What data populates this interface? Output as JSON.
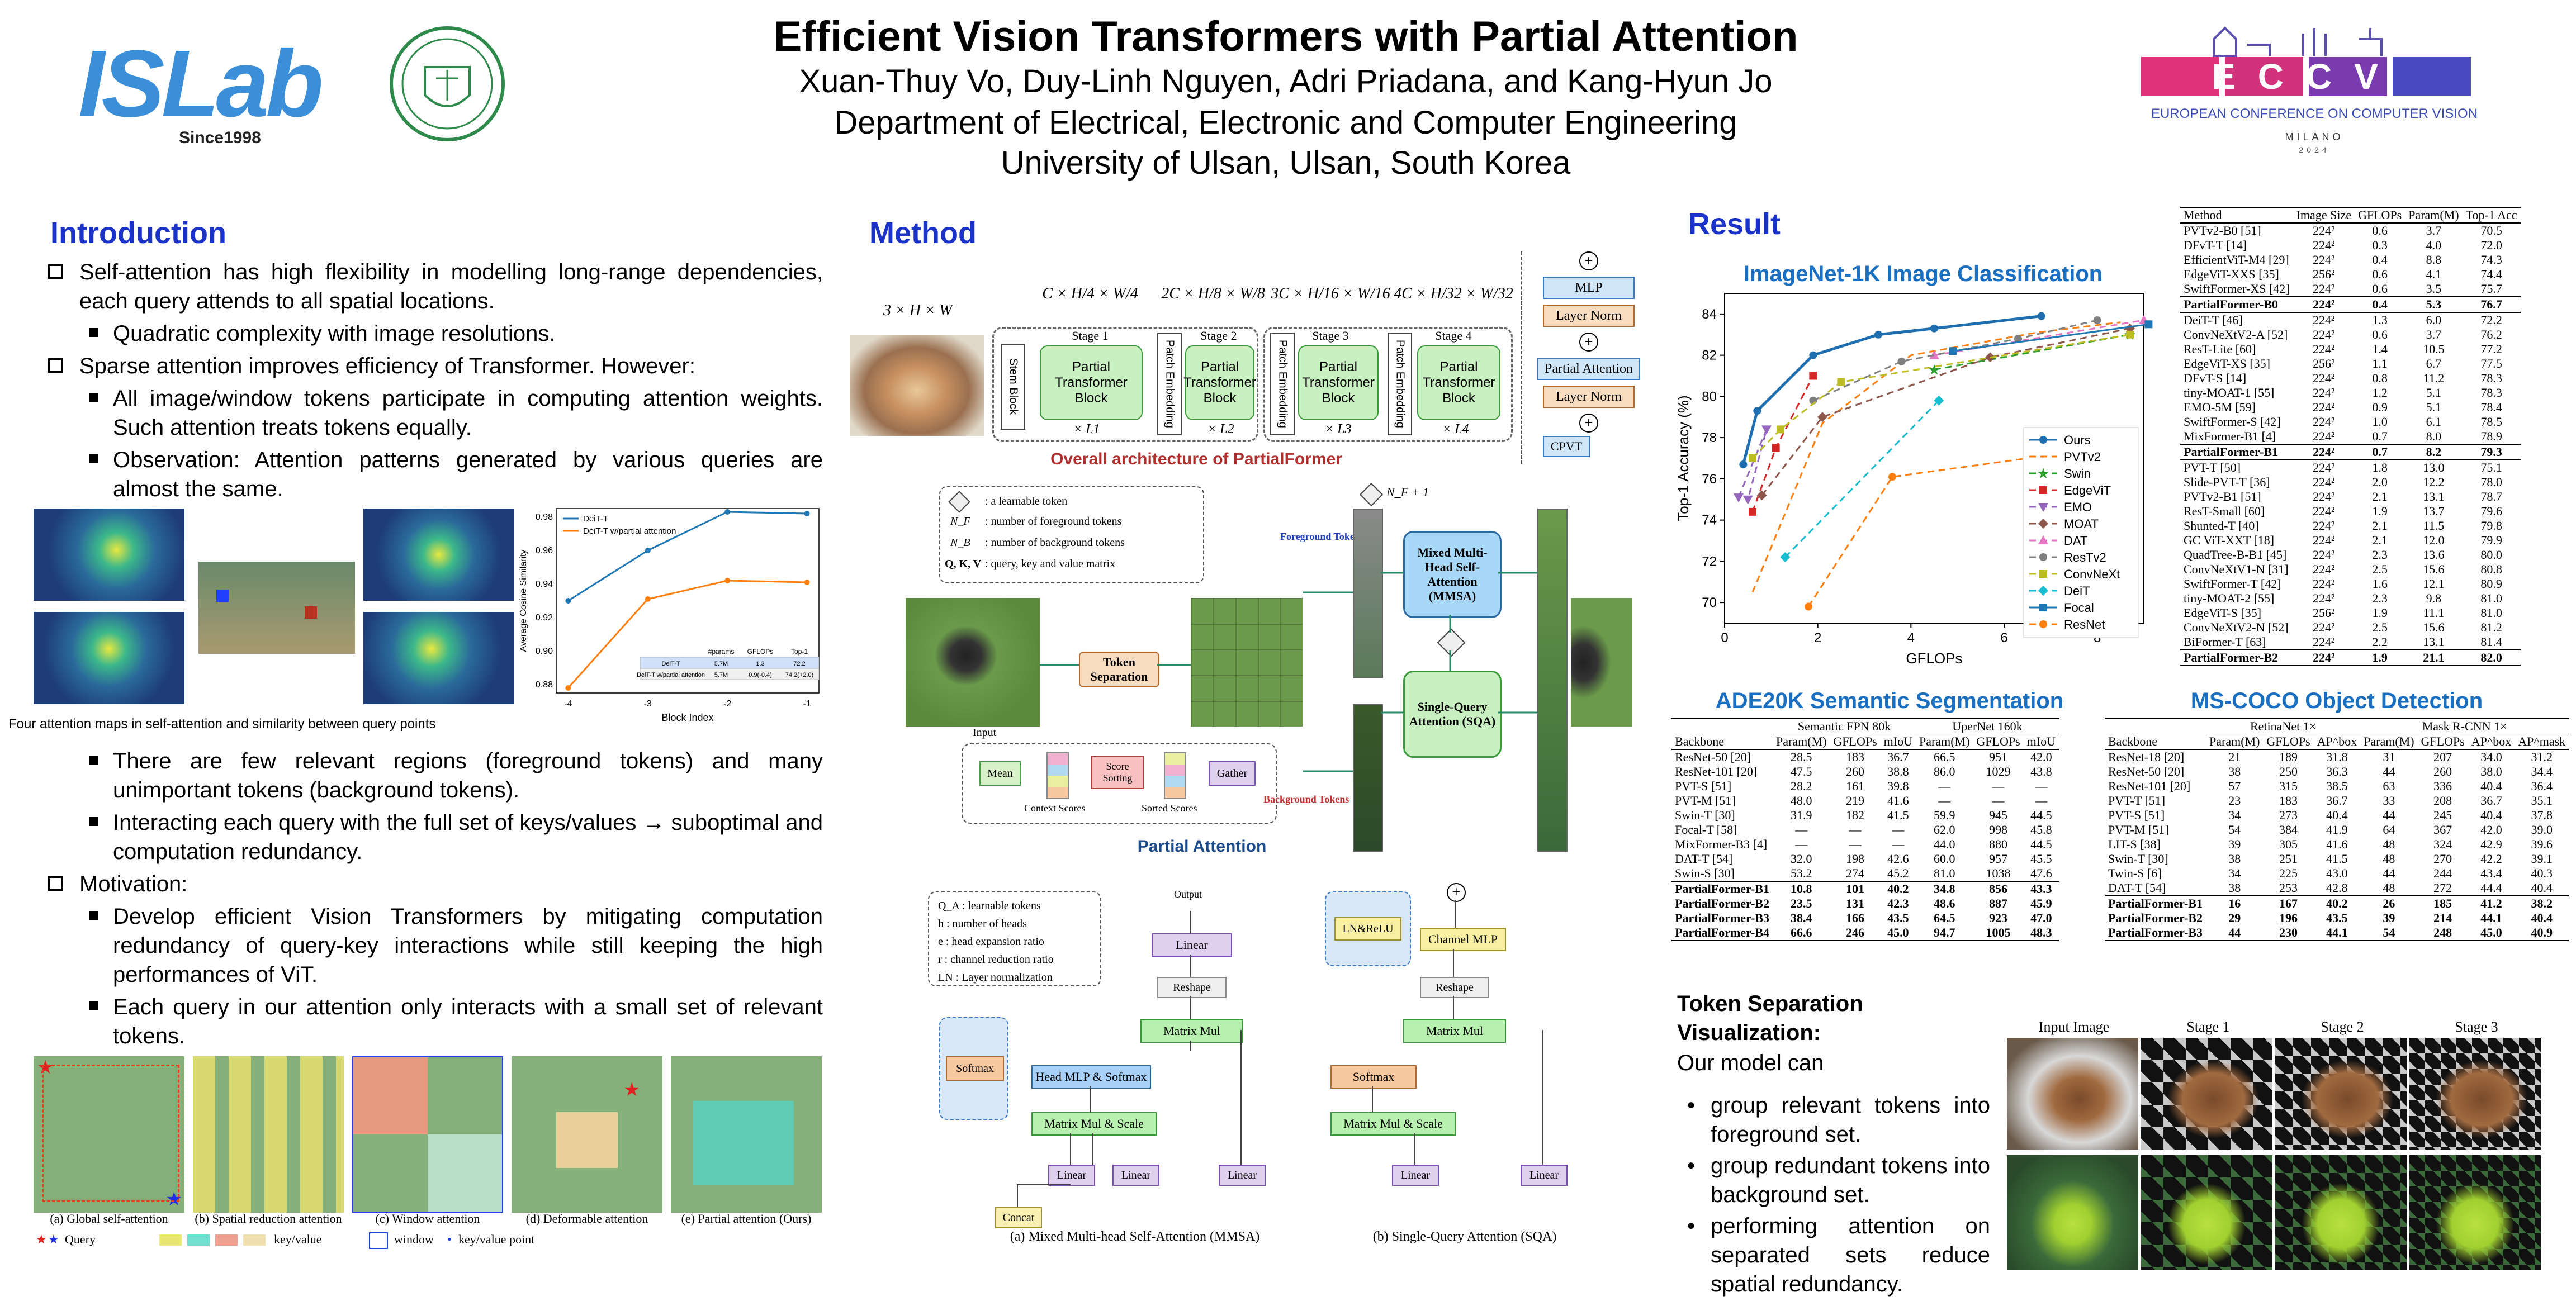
{
  "header": {
    "title": "Efficient Vision Transformers with Partial Attention",
    "authors": "Xuan-Thuy Vo, Duy-Linh Nguyen, Adri Priadana, and Kang-Hyun Jo",
    "department": "Department of Electrical, Electronic and Computer Engineering",
    "university": "University of Ulsan, Ulsan, South Korea",
    "lab_logo": "ISLab",
    "lab_since": "Since1998",
    "eccv_logo": "ECCV",
    "eccv_sub": "EUROPEAN CONFERENCE ON COMPUTER VISION",
    "eccv_city": "MILANO",
    "eccv_year": "2024"
  },
  "introduction": {
    "heading": "Introduction",
    "p1": "Self-attention has high flexibility in modelling long-range dependencies, each query attends to all spatial locations.",
    "p1_b1": "Quadratic complexity with image resolutions.",
    "p2": "Sparse attention improves efficiency of Transformer. However:",
    "p2_b1": "All image/window tokens participate in computing attention weights. Such attention treats tokens equally.",
    "p2_b2": "Observation: Attention patterns generated by various queries are almost the same.",
    "fig_caption": "Four attention maps in self-attention and similarity between query points",
    "p2_b3": "There are few relevant regions (foreground tokens) and many unimportant tokens (background tokens).",
    "p2_b4": "Interacting each query with the full set of keys/values → suboptimal and computation redundancy.",
    "p3": "Motivation:",
    "p3_b1": "Develop efficient Vision Transformers by mitigating computation redundancy of query-key interactions while still keeping the high performances of ViT.",
    "p3_b2": "Each query in our attention only interacts with a small set of relevant tokens.",
    "panel_captions": [
      "(a) Global self-attention",
      "(b) Spatial reduction attention",
      "(c) Window attention",
      "(d) Deformable attention",
      "(e) Partial attention (Ours)"
    ],
    "legend_query": "Query",
    "legend_kv": "key/value",
    "legend_window": "window",
    "legend_kvpoint": "key/value point"
  },
  "sim_chart": {
    "ylabel": "Average Cosine Similarity",
    "xlabel": "Block Index",
    "legend": [
      "DeiT-T",
      "DeiT-T w/partial attention"
    ],
    "x_ticks": [
      "-4",
      "-3",
      "-2",
      "-1"
    ],
    "y_ticks": [
      "0.88",
      "0.90",
      "0.92",
      "0.94",
      "0.96",
      "0.98"
    ],
    "colors": [
      "#1f77b4",
      "#ff7f0e"
    ],
    "inset_table": {
      "header": [
        "",
        "#params",
        "GFLOPs",
        "Top-1"
      ],
      "rows": [
        [
          "DeiT-T",
          "5.7M",
          "1.3",
          "72.2"
        ],
        [
          "DeiT-T w/partial attention",
          "5.7M",
          "0.9(-0.4)",
          "74.2(+2.0)"
        ]
      ]
    }
  },
  "method": {
    "heading": "Method",
    "input_label": "3 × H × W",
    "stem": "Stem Block",
    "patch_embed": "Patch Embedding",
    "stages": [
      {
        "name": "Stage 1",
        "dim": "C × H/4 × W/4",
        "rep": "× L1"
      },
      {
        "name": "Stage 2",
        "dim": "2C × H/8 × W/8",
        "rep": "× L2"
      },
      {
        "name": "Stage 3",
        "dim": "3C × H/16 × W/16",
        "rep": "× L3"
      },
      {
        "name": "Stage 4",
        "dim": "4C × H/32 × W/32",
        "rep": "× L4"
      }
    ],
    "block_label": "Partial Transformer Block",
    "block_parts": [
      "MLP",
      "Layer Norm",
      "Partial Attention",
      "Layer Norm",
      "CPVT"
    ],
    "overall_caption": "Overall architecture of PartialFormer",
    "legend_items": [
      ": a learnable token",
      ": number of foreground tokens",
      ": number of background tokens",
      ": query, key and value matrix"
    ],
    "legend_symbols": [
      "",
      "N_F",
      "N_B",
      "Q, K, V"
    ],
    "token_sep": "Token Separation",
    "input": "Input",
    "ts_steps": [
      "Mean",
      "Score Sorting",
      "Gather"
    ],
    "context_scores": "Context Scores",
    "sorted_scores": "Sorted Scores",
    "fg_tokens": "Foreground Tokens",
    "bg_tokens": "Background Tokens",
    "mmsa": "Mixed Multi-Head Self-Attention (MMSA)",
    "sqa": "Single-Query Attention (SQA)",
    "nf1": "N_F + 1",
    "partial_caption": "Partial Attention",
    "notes": [
      "Q_A : learnable tokens",
      "h : number of heads",
      "e : head expansion ratio",
      "r : channel reduction ratio",
      "LN : Layer normalization"
    ],
    "mmsa_boxes": [
      "Linear",
      "Reshape",
      "Matrix Mul",
      "Head MLP & Softmax",
      "Matrix Mul & Scale",
      "Linear",
      "Linear",
      "Linear",
      "Concat"
    ],
    "sqa_boxes": [
      "LN&ReLU",
      "Channel MLP",
      "Reshape",
      "Matrix Mul",
      "Softmax",
      "Matrix Mul & Scale",
      "Linear",
      "Linear"
    ],
    "softmax": "Softmax",
    "mmsa_caption": "(a) Mixed Multi-head Self-Attention (MMSA)",
    "sqa_caption": "(b) Single-Query Attention (SQA)",
    "output": "Output"
  },
  "result": {
    "heading": "Result",
    "imagenet_title": "ImageNet-1K Image Classification",
    "ade_title": "ADE20K Semantic Segmentation",
    "coco_title": "MS-COCO Object Detection",
    "token_vis_title": "Token Separation Visualization:",
    "token_vis_text": "Our model can",
    "token_vis_items": [
      "group relevant tokens into foreground set.",
      "group redundant tokens into background set.",
      "performing attention on separated sets reduce spatial redundancy."
    ],
    "vis_headers": [
      "Input Image",
      "Stage 1",
      "Stage 2",
      "Stage 3"
    ]
  },
  "chart_data": {
    "type": "line",
    "title": "ImageNet-1K Image Classification",
    "xlabel": "GFLOPs",
    "ylabel": "Top-1 Accuracy (%)",
    "xlim": [
      0,
      9
    ],
    "ylim": [
      69,
      85
    ],
    "x_ticks": [
      0,
      2,
      4,
      6,
      8
    ],
    "y_ticks": [
      70,
      72,
      74,
      76,
      78,
      80,
      82,
      84
    ],
    "legend_position": "right",
    "series": [
      {
        "name": "Ours",
        "color": "#1f6fb0",
        "dash": "",
        "marker": "circle",
        "x": [
          0.4,
          0.7,
          1.9,
          3.3,
          4.5,
          6.8
        ],
        "y": [
          76.7,
          79.3,
          82.0,
          83.0,
          83.3,
          83.9
        ]
      },
      {
        "name": "PVTv2",
        "color": "#ff7f0e",
        "dash": "12,8",
        "marker": "none",
        "x": [
          0.6,
          2.1,
          4.0,
          6.7,
          8.5
        ],
        "y": [
          70.5,
          78.7,
          82.0,
          83.1,
          83.6
        ]
      },
      {
        "name": "Swin",
        "color": "#2ca02c",
        "dash": "12,8",
        "marker": "star",
        "x": [
          4.5,
          8.7
        ],
        "y": [
          81.3,
          83.0
        ]
      },
      {
        "name": "EdgeViT",
        "color": "#d62728",
        "dash": "12,8",
        "marker": "square",
        "x": [
          0.6,
          1.1,
          1.9
        ],
        "y": [
          74.4,
          77.5,
          81.0
        ]
      },
      {
        "name": "EMO",
        "color": "#9467bd",
        "dash": "12,8",
        "marker": "triangle-down",
        "x": [
          0.3,
          0.9,
          0.5
        ],
        "y": [
          75.1,
          78.4,
          75.0
        ]
      },
      {
        "name": "MOAT",
        "color": "#8c564b",
        "dash": "12,8",
        "marker": "diamond",
        "x": [
          0.8,
          2.1,
          5.7,
          8.7
        ],
        "y": [
          75.2,
          79.0,
          81.9,
          83.3
        ]
      },
      {
        "name": "DAT",
        "color": "#e377c2",
        "dash": "12,8",
        "marker": "triangle-up",
        "x": [
          4.5,
          9.0
        ],
        "y": [
          82.0,
          83.7
        ]
      },
      {
        "name": "ResTv2",
        "color": "#7f7f7f",
        "dash": "12,8",
        "marker": "circle",
        "x": [
          1.9,
          3.8,
          6.3,
          8.0
        ],
        "y": [
          79.8,
          81.7,
          82.8,
          83.7
        ]
      },
      {
        "name": "ConvNeXt",
        "color": "#bcbd22",
        "dash": "12,8",
        "marker": "square",
        "x": [
          0.6,
          1.2,
          2.5,
          8.7
        ],
        "y": [
          77.0,
          78.4,
          80.7,
          83.0
        ]
      },
      {
        "name": "DeiT",
        "color": "#17becf",
        "dash": "12,8",
        "marker": "diamond",
        "x": [
          1.3,
          4.6
        ],
        "y": [
          72.2,
          79.8
        ]
      },
      {
        "name": "Focal",
        "color": "#1f77b4",
        "dash": "",
        "marker": "square",
        "x": [
          4.9,
          9.1
        ],
        "y": [
          82.2,
          83.5
        ]
      },
      {
        "name": "ResNet",
        "color": "#ff7f0e",
        "dash": "12,8",
        "marker": "circle",
        "x": [
          1.8,
          3.6,
          7.8
        ],
        "y": [
          69.8,
          76.1,
          77.4
        ]
      }
    ]
  },
  "imagenet_table": {
    "header": [
      "Method",
      "Image Size",
      "GFLOPs",
      "Param(M)",
      "Top-1 Acc"
    ],
    "groups": [
      {
        "rows": [
          [
            "PVTv2-B0 [51]",
            "224²",
            "0.6",
            "3.7",
            "70.5"
          ],
          [
            "DFvT-T [14]",
            "224²",
            "0.3",
            "4.0",
            "72.0"
          ],
          [
            "EfficientViT-M4 [29]",
            "224²",
            "0.4",
            "8.8",
            "74.3"
          ],
          [
            "EdgeViT-XXS [35]",
            "256²",
            "0.6",
            "4.1",
            "74.4"
          ],
          [
            "SwiftFormer-XS [42]",
            "224²",
            "0.6",
            "3.5",
            "75.7"
          ]
        ],
        "ours": [
          "PartialFormer-B0",
          "224²",
          "0.4",
          "5.3",
          "76.7"
        ]
      },
      {
        "rows": [
          [
            "DeiT-T [46]",
            "224²",
            "1.3",
            "6.0",
            "72.2"
          ],
          [
            "ConvNeXtV2-A [52]",
            "224²",
            "0.6",
            "3.7",
            "76.2"
          ],
          [
            "ResT-Lite [60]",
            "224²",
            "1.4",
            "10.5",
            "77.2"
          ],
          [
            "EdgeViT-XS [35]",
            "256²",
            "1.1",
            "6.7",
            "77.5"
          ],
          [
            "DFvT-S [14]",
            "224²",
            "0.8",
            "11.2",
            "78.3"
          ],
          [
            "tiny-MOAT-1 [55]",
            "224²",
            "1.2",
            "5.1",
            "78.3"
          ],
          [
            "EMO-5M [59]",
            "224²",
            "0.9",
            "5.1",
            "78.4"
          ],
          [
            "SwiftFormer-S [42]",
            "224²",
            "1.0",
            "6.1",
            "78.5"
          ],
          [
            "MixFormer-B1 [4]",
            "224²",
            "0.7",
            "8.0",
            "78.9"
          ]
        ],
        "ours": [
          "PartialFormer-B1",
          "224²",
          "0.7",
          "8.2",
          "79.3"
        ]
      },
      {
        "rows": [
          [
            "PVT-T [50]",
            "224²",
            "1.8",
            "13.0",
            "75.1"
          ],
          [
            "Slide-PVT-T [36]",
            "224²",
            "2.0",
            "12.2",
            "78.0"
          ],
          [
            "PVTv2-B1 [51]",
            "224²",
            "2.1",
            "13.1",
            "78.7"
          ],
          [
            "ResT-Small [60]",
            "224²",
            "1.9",
            "13.7",
            "79.6"
          ],
          [
            "Shunted-T [40]",
            "224²",
            "2.1",
            "11.5",
            "79.8"
          ],
          [
            "GC ViT-XXT [18]",
            "224²",
            "2.1",
            "12.0",
            "79.9"
          ],
          [
            "QuadTree-B-B1 [45]",
            "224²",
            "2.3",
            "13.6",
            "80.0"
          ],
          [
            "ConvNeXtV1-N [31]",
            "224²",
            "2.5",
            "15.6",
            "80.8"
          ],
          [
            "SwiftFormer-T [42]",
            "224²",
            "1.6",
            "12.1",
            "80.9"
          ],
          [
            "tiny-MOAT-2 [55]",
            "224²",
            "2.3",
            "9.8",
            "81.0"
          ],
          [
            "EdgeViT-S [35]",
            "256²",
            "1.9",
            "11.1",
            "81.0"
          ],
          [
            "ConvNeXtV2-N [52]",
            "224²",
            "2.5",
            "15.6",
            "81.2"
          ],
          [
            "BiFormer-T [63]",
            "224²",
            "2.2",
            "13.1",
            "81.4"
          ]
        ],
        "ours": [
          "PartialFormer-B2",
          "224²",
          "1.9",
          "21.1",
          "82.0"
        ]
      }
    ]
  },
  "ade_table": {
    "group_headers": [
      "Semantic FPN 80k",
      "UperNet 160k"
    ],
    "header": [
      "Backbone",
      "Param(M)",
      "GFLOPs",
      "mIoU",
      "Param(M)",
      "GFLOPs",
      "mIoU"
    ],
    "rows": [
      [
        "ResNet-50 [20]",
        "28.5",
        "183",
        "36.7",
        "66.5",
        "951",
        "42.0"
      ],
      [
        "ResNet-101 [20]",
        "47.5",
        "260",
        "38.8",
        "86.0",
        "1029",
        "43.8"
      ],
      [
        "PVT-S [51]",
        "28.2",
        "161",
        "39.8",
        "—",
        "—",
        "—"
      ],
      [
        "PVT-M [51]",
        "48.0",
        "219",
        "41.6",
        "—",
        "—",
        "—"
      ],
      [
        "Swin-T [30]",
        "31.9",
        "182",
        "41.5",
        "59.9",
        "945",
        "44.5"
      ],
      [
        "Focal-T [58]",
        "—",
        "—",
        "—",
        "62.0",
        "998",
        "45.8"
      ],
      [
        "MixFormer-B3 [4]",
        "—",
        "—",
        "—",
        "44.0",
        "880",
        "44.5"
      ],
      [
        "DAT-T [54]",
        "32.0",
        "198",
        "42.6",
        "60.0",
        "957",
        "45.5"
      ],
      [
        "Swin-S [30]",
        "53.2",
        "274",
        "45.2",
        "81.0",
        "1038",
        "47.6"
      ]
    ],
    "ours": [
      [
        "PartialFormer-B1",
        "10.8",
        "101",
        "40.2",
        "34.8",
        "856",
        "43.3"
      ],
      [
        "PartialFormer-B2",
        "23.5",
        "131",
        "42.3",
        "48.6",
        "887",
        "45.9"
      ],
      [
        "PartialFormer-B3",
        "38.4",
        "166",
        "43.5",
        "64.5",
        "923",
        "47.0"
      ],
      [
        "PartialFormer-B4",
        "66.6",
        "246",
        "45.0",
        "94.7",
        "1005",
        "48.3"
      ]
    ]
  },
  "coco_table": {
    "group_headers": [
      "RetinaNet 1×",
      "Mask R-CNN 1×"
    ],
    "header": [
      "Backbone",
      "Param(M)",
      "GFLOPs",
      "AP^box",
      "Param(M)",
      "GFLOPs",
      "AP^box",
      "AP^mask"
    ],
    "rows": [
      [
        "ResNet-18 [20]",
        "21",
        "189",
        "31.8",
        "31",
        "207",
        "34.0",
        "31.2"
      ],
      [
        "ResNet-50 [20]",
        "38",
        "250",
        "36.3",
        "44",
        "260",
        "38.0",
        "34.4"
      ],
      [
        "ResNet-101 [20]",
        "57",
        "315",
        "38.5",
        "63",
        "336",
        "40.4",
        "36.4"
      ],
      [
        "PVT-T [51]",
        "23",
        "183",
        "36.7",
        "33",
        "208",
        "36.7",
        "35.1"
      ],
      [
        "PVT-S [51]",
        "34",
        "273",
        "40.4",
        "44",
        "245",
        "40.4",
        "37.8"
      ],
      [
        "PVT-M [51]",
        "54",
        "384",
        "41.9",
        "64",
        "367",
        "42.0",
        "39.0"
      ],
      [
        "LIT-S [38]",
        "39",
        "305",
        "41.6",
        "48",
        "324",
        "42.9",
        "39.6"
      ],
      [
        "Swin-T [30]",
        "38",
        "251",
        "41.5",
        "48",
        "270",
        "42.2",
        "39.1"
      ],
      [
        "Twin-S [6]",
        "34",
        "225",
        "43.0",
        "44",
        "244",
        "43.4",
        "40.3"
      ],
      [
        "DAT-T [54]",
        "38",
        "253",
        "42.8",
        "48",
        "272",
        "44.4",
        "40.4"
      ]
    ],
    "ours": [
      [
        "PartialFormer-B1",
        "16",
        "167",
        "40.2",
        "26",
        "185",
        "41.2",
        "38.2"
      ],
      [
        "PartialFormer-B2",
        "29",
        "196",
        "43.5",
        "39",
        "214",
        "44.1",
        "40.4"
      ],
      [
        "PartialFormer-B3",
        "44",
        "230",
        "44.1",
        "54",
        "248",
        "45.0",
        "40.9"
      ]
    ]
  }
}
